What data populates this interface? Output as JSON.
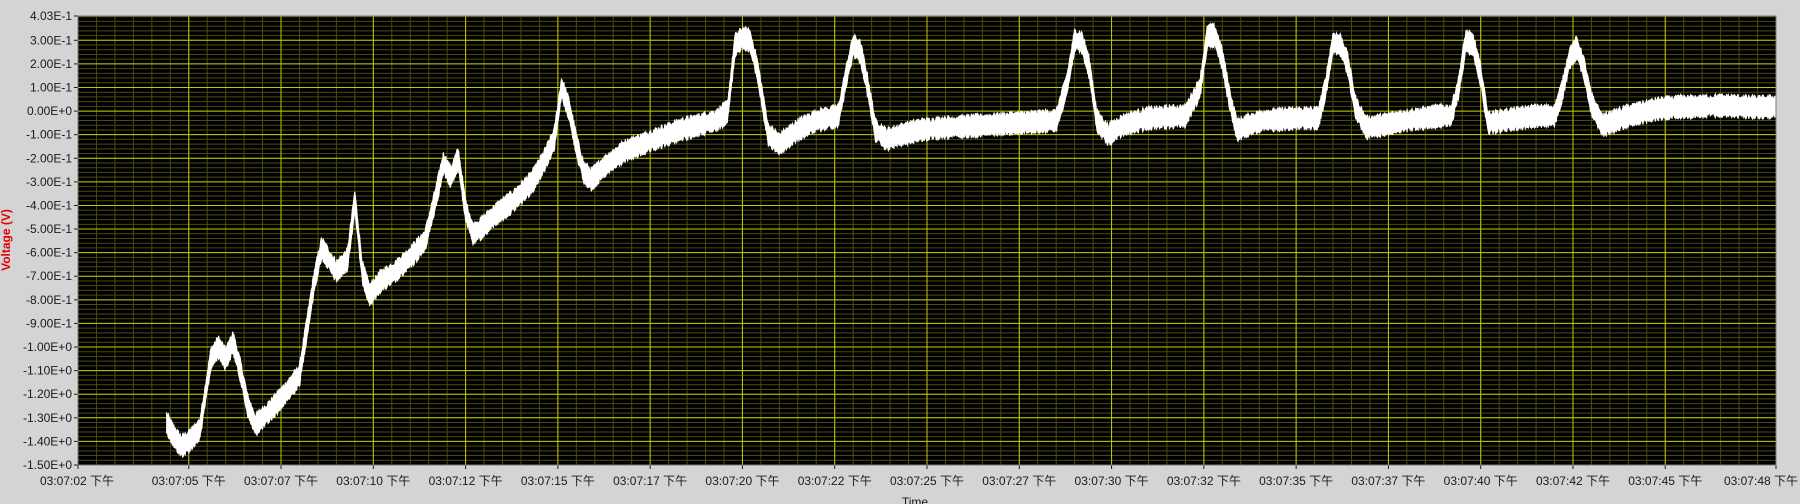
{
  "chart_data": {
    "type": "line",
    "title": "",
    "xlabel": "Time",
    "ylabel": "Voltage (V)",
    "ylim": [
      -1.5,
      0.403
    ],
    "xlim_seconds": [
      0,
      46
    ],
    "grid": true,
    "colors": {
      "plot_background": "#000000",
      "major_grid": "#c8c800",
      "minor_grid": "#4a4a10",
      "trace": "#ffffff",
      "frame": "#d4d4d4",
      "ylabel_color": "#e00000"
    },
    "y_ticks": [
      {
        "value": 0.403,
        "label": "4.03E-1"
      },
      {
        "value": 0.3,
        "label": "3.00E-1"
      },
      {
        "value": 0.2,
        "label": "2.00E-1"
      },
      {
        "value": 0.1,
        "label": "1.00E-1"
      },
      {
        "value": 0.0,
        "label": "0.00E+0"
      },
      {
        "value": -0.1,
        "label": "-1.00E-1"
      },
      {
        "value": -0.2,
        "label": "-2.00E-1"
      },
      {
        "value": -0.3,
        "label": "-3.00E-1"
      },
      {
        "value": -0.4,
        "label": "-4.00E-1"
      },
      {
        "value": -0.5,
        "label": "-5.00E-1"
      },
      {
        "value": -0.6,
        "label": "-6.00E-1"
      },
      {
        "value": -0.7,
        "label": "-7.00E-1"
      },
      {
        "value": -0.8,
        "label": "-8.00E-1"
      },
      {
        "value": -0.9,
        "label": "-9.00E-1"
      },
      {
        "value": -1.0,
        "label": "-1.00E+0"
      },
      {
        "value": -1.1,
        "label": "-1.10E+0"
      },
      {
        "value": -1.2,
        "label": "-1.20E+0"
      },
      {
        "value": -1.3,
        "label": "-1.30E+0"
      },
      {
        "value": -1.4,
        "label": "-1.40E+0"
      },
      {
        "value": -1.5,
        "label": "-1.50E+0"
      }
    ],
    "x_ticks": [
      {
        "t": 0,
        "label": "03:07:02 下午"
      },
      {
        "t": 3,
        "label": "03:07:05 下午"
      },
      {
        "t": 5.5,
        "label": "03:07:07 下午"
      },
      {
        "t": 8,
        "label": "03:07:10 下午"
      },
      {
        "t": 10.5,
        "label": "03:07:12 下午"
      },
      {
        "t": 13,
        "label": "03:07:15 下午"
      },
      {
        "t": 15.5,
        "label": "03:07:17 下午"
      },
      {
        "t": 18,
        "label": "03:07:20 下午"
      },
      {
        "t": 20.5,
        "label": "03:07:22 下午"
      },
      {
        "t": 23,
        "label": "03:07:25 下午"
      },
      {
        "t": 25.5,
        "label": "03:07:27 下午"
      },
      {
        "t": 28,
        "label": "03:07:30 下午"
      },
      {
        "t": 30.5,
        "label": "03:07:32 下午"
      },
      {
        "t": 33,
        "label": "03:07:35 下午"
      },
      {
        "t": 35.5,
        "label": "03:07:37 下午"
      },
      {
        "t": 38,
        "label": "03:07:40 下午"
      },
      {
        "t": 40.5,
        "label": "03:07:42 下午"
      },
      {
        "t": 43,
        "label": "03:07:45 下午"
      },
      {
        "t": 46,
        "label": "03:07:48 下午"
      }
    ],
    "series": [
      {
        "style": "noisy band",
        "t": [
          2.4,
          2.6,
          2.8,
          3.0,
          3.3,
          3.6,
          3.8,
          4.0,
          4.2,
          4.4,
          4.6,
          4.8,
          5.2,
          5.6,
          6.0,
          6.4,
          6.6,
          6.8,
          7.0,
          7.3,
          7.5,
          7.7,
          7.9,
          8.2,
          8.6,
          9.0,
          9.4,
          9.7,
          9.9,
          10.1,
          10.3,
          10.5,
          10.7,
          10.9,
          11.3,
          11.8,
          12.3,
          12.6,
          12.9,
          13.1,
          13.3,
          13.5,
          13.7,
          13.9,
          14.3,
          14.8,
          15.3,
          15.8,
          16.3,
          16.8,
          17.3,
          17.6,
          17.8,
          18.0,
          18.2,
          18.4,
          18.7,
          19.0,
          19.5,
          20.0,
          20.6,
          20.8,
          21.0,
          21.2,
          21.4,
          21.6,
          21.9,
          22.3,
          22.8,
          23.5,
          24.5,
          25.5,
          26.5,
          26.8,
          27.0,
          27.2,
          27.4,
          27.6,
          27.9,
          28.3,
          29.0,
          30.0,
          30.4,
          30.6,
          30.8,
          31.0,
          31.2,
          31.4,
          31.7,
          32.1,
          33.0,
          33.6,
          33.8,
          34.0,
          34.2,
          34.4,
          34.6,
          34.9,
          35.3,
          36.0,
          36.9,
          37.2,
          37.4,
          37.6,
          37.8,
          38.0,
          38.2,
          38.6,
          39.5,
          40.0,
          40.2,
          40.4,
          40.6,
          40.8,
          41.0,
          41.3,
          42.0,
          42.8,
          43.5
        ],
        "mid": [
          -1.32,
          -1.38,
          -1.42,
          -1.4,
          -1.35,
          -1.05,
          -1.0,
          -1.05,
          -0.98,
          -1.1,
          -1.25,
          -1.33,
          -1.27,
          -1.2,
          -1.12,
          -0.72,
          -0.58,
          -0.63,
          -0.68,
          -0.63,
          -0.38,
          -0.68,
          -0.78,
          -0.72,
          -0.68,
          -0.62,
          -0.55,
          -0.36,
          -0.22,
          -0.28,
          -0.2,
          -0.42,
          -0.52,
          -0.5,
          -0.44,
          -0.38,
          -0.3,
          -0.22,
          -0.12,
          0.1,
          0.01,
          -0.14,
          -0.26,
          -0.29,
          -0.23,
          -0.17,
          -0.14,
          -0.11,
          -0.08,
          -0.06,
          -0.04,
          0.0,
          0.28,
          0.31,
          0.3,
          0.18,
          -0.1,
          -0.14,
          -0.08,
          -0.04,
          -0.02,
          0.14,
          0.28,
          0.25,
          0.1,
          -0.08,
          -0.12,
          -0.1,
          -0.08,
          -0.07,
          -0.06,
          -0.05,
          -0.04,
          0.12,
          0.3,
          0.29,
          0.18,
          -0.04,
          -0.1,
          -0.06,
          -0.03,
          -0.02,
          0.1,
          0.32,
          0.32,
          0.22,
          0.05,
          -0.08,
          -0.06,
          -0.04,
          -0.03,
          -0.03,
          0.1,
          0.29,
          0.28,
          0.2,
          0.02,
          -0.07,
          -0.06,
          -0.04,
          -0.02,
          -0.02,
          0.1,
          0.3,
          0.28,
          0.15,
          -0.05,
          -0.04,
          -0.02,
          -0.02,
          0.08,
          0.22,
          0.27,
          0.18,
          0.03,
          -0.06,
          -0.02,
          0.01,
          0.02
        ],
        "half_width": 0.04
      }
    ]
  }
}
